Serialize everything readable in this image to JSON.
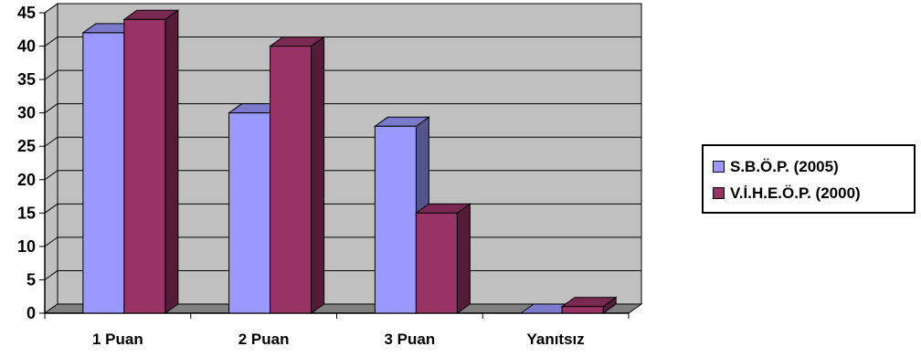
{
  "chart_data": {
    "type": "bar",
    "categories": [
      "1 Puan",
      "2 Puan",
      "3 Puan",
      "Yanıtsız"
    ],
    "series": [
      {
        "name": "S.B.Ö.P. (2005)",
        "values": [
          42,
          30,
          28,
          0
        ],
        "color": "#9999ff"
      },
      {
        "name": "V.İ.H.E.Ö.P. (2000)",
        "values": [
          44,
          40,
          15,
          1
        ],
        "color": "#993366"
      }
    ],
    "yticks": [
      "0",
      "5",
      "10",
      "15",
      "20",
      "25",
      "30",
      "35",
      "40",
      "45"
    ],
    "ylim": [
      0,
      45
    ],
    "grid": true,
    "legend_position": "right",
    "wall_color": "#c0c0c0",
    "floor_color": "#808080"
  }
}
